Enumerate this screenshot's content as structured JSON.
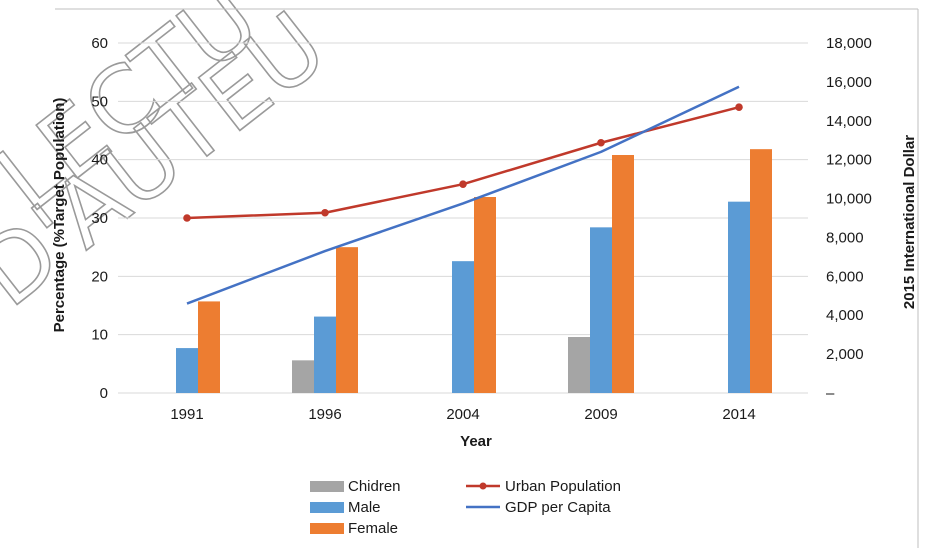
{
  "chart_data": {
    "type": "bar",
    "categories": [
      "1991",
      "1996",
      "2004",
      "2009",
      "2014"
    ],
    "title": "",
    "xlabel": "Year",
    "ylabel": "Percentage (%Target Population)",
    "y2label": "2015 International Dollar",
    "ylim": [
      0,
      60
    ],
    "y2lim": [
      0,
      18000
    ],
    "yticks": [
      "0",
      "10",
      "20",
      "30",
      "40",
      "50",
      "60"
    ],
    "y2ticks": [
      "–",
      "2,000",
      "4,000",
      "6,000",
      "8,000",
      "10,000",
      "12,000",
      "14,000",
      "16,000",
      "18,000"
    ],
    "grid": true,
    "legend_position": "bottom",
    "bar_series": [
      {
        "name": "Chidren",
        "color": "#a5a5a5",
        "values": [
          null,
          5.6,
          null,
          9.6,
          null
        ]
      },
      {
        "name": "Male",
        "color": "#5b9bd5",
        "values": [
          7.7,
          13.1,
          22.6,
          28.4,
          32.8
        ]
      },
      {
        "name": "Female",
        "color": "#ed7d31",
        "values": [
          15.7,
          25.0,
          33.6,
          40.8,
          41.8
        ]
      }
    ],
    "line_series": [
      {
        "name": "Urban Population",
        "color": "#c0392b",
        "axis": "left",
        "markers": true,
        "values": [
          30.0,
          30.9,
          35.8,
          42.9,
          49.0
        ]
      },
      {
        "name": "GDP per Capita",
        "color": "#4472c4",
        "axis": "right",
        "markers": false,
        "values": [
          4600,
          7300,
          9750,
          12400,
          15750
        ]
      }
    ]
  },
  "watermark": {
    "lines": [
      "LECTU",
      "D'AUTEU"
    ]
  }
}
